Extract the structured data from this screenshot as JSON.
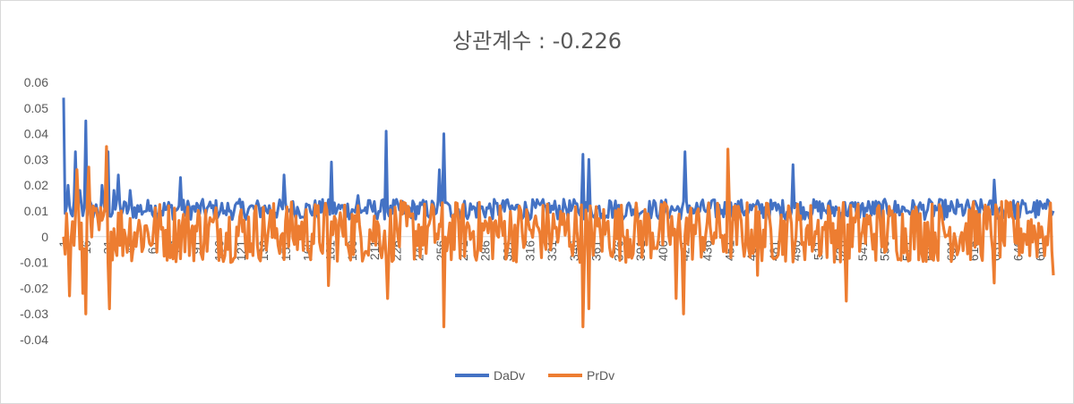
{
  "chart_data": {
    "type": "line",
    "title": "상관계수 : -0.226",
    "xlabel": "",
    "ylabel": "",
    "ylim": [
      -0.04,
      0.06
    ],
    "y_ticks": [
      "0.06",
      "0.05",
      "0.04",
      "0.03",
      "0.02",
      "0.01",
      "0",
      "-0.01",
      "-0.02",
      "-0.03",
      "-0.04"
    ],
    "x_tick_labels": [
      "1",
      "16",
      "31",
      "46",
      "61",
      "76",
      "91",
      "106",
      "121",
      "136",
      "151",
      "166",
      "181",
      "196",
      "211",
      "226",
      "241",
      "256",
      "271",
      "286",
      "301",
      "316",
      "331",
      "346",
      "361",
      "376",
      "391",
      "406",
      "421",
      "436",
      "451",
      "466",
      "481",
      "496",
      "511",
      "526",
      "541",
      "556",
      "571",
      "586",
      "601",
      "616",
      "631",
      "646",
      "661"
    ],
    "n_points": 670,
    "grid": false,
    "legend_position": "bottom",
    "series": [
      {
        "name": "DaDv",
        "color": "#4472c4",
        "keypoints": [
          [
            1,
            0.054
          ],
          [
            4,
            0.02
          ],
          [
            6,
            0.009
          ],
          [
            9,
            0.033
          ],
          [
            12,
            0.018
          ],
          [
            16,
            0.045
          ],
          [
            20,
            0.012
          ],
          [
            27,
            0.02
          ],
          [
            31,
            0.033
          ],
          [
            35,
            0.018
          ],
          [
            38,
            0.024
          ],
          [
            46,
            0.018
          ],
          [
            60,
            0.012
          ],
          [
            80,
            0.023
          ],
          [
            110,
            0.01
          ],
          [
            150,
            0.024
          ],
          [
            182,
            0.029
          ],
          [
            200,
            0.016
          ],
          [
            219,
            0.041
          ],
          [
            222,
            0.012
          ],
          [
            255,
            0.026
          ],
          [
            258,
            0.04
          ],
          [
            262,
            0.012
          ],
          [
            300,
            0.014
          ],
          [
            340,
            0.012
          ],
          [
            352,
            0.032
          ],
          [
            356,
            0.03
          ],
          [
            370,
            0.014
          ],
          [
            421,
            0.033
          ],
          [
            424,
            0.012
          ],
          [
            470,
            0.014
          ],
          [
            494,
            0.028
          ],
          [
            497,
            0.012
          ],
          [
            540,
            0.012
          ],
          [
            560,
            0.01
          ],
          [
            600,
            0.01
          ],
          [
            630,
            0.022
          ],
          [
            633,
            0.01
          ],
          [
            670,
            0.01
          ]
        ],
        "baseline": 0.009
      },
      {
        "name": "PrDv",
        "color": "#ed7d31",
        "keypoints": [
          [
            1,
            0.0
          ],
          [
            5,
            -0.023
          ],
          [
            10,
            0.026
          ],
          [
            14,
            -0.022
          ],
          [
            16,
            -0.03
          ],
          [
            18,
            0.027
          ],
          [
            30,
            0.035
          ],
          [
            32,
            -0.028
          ],
          [
            40,
            0.01
          ],
          [
            180,
            -0.019
          ],
          [
            220,
            -0.024
          ],
          [
            258,
            -0.035
          ],
          [
            352,
            -0.035
          ],
          [
            356,
            -0.028
          ],
          [
            415,
            -0.024
          ],
          [
            420,
            -0.03
          ],
          [
            450,
            0.034
          ],
          [
            470,
            -0.015
          ],
          [
            530,
            -0.025
          ],
          [
            630,
            -0.018
          ],
          [
            670,
            -0.015
          ]
        ],
        "baseline": 0.002
      }
    ]
  }
}
